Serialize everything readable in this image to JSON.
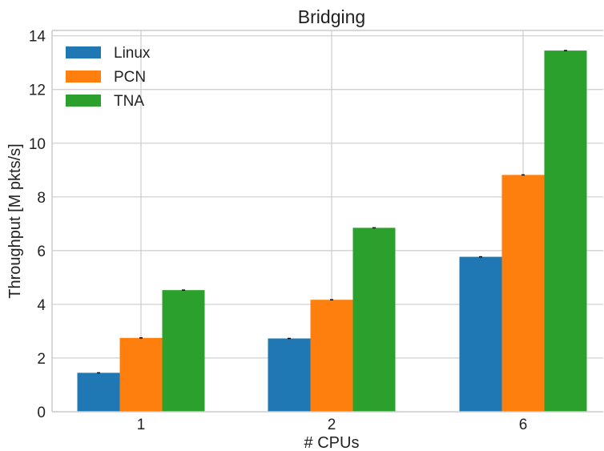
{
  "chart_data": {
    "type": "bar",
    "title": "Bridging",
    "xlabel": "# CPUs",
    "ylabel": "Throughput [M pkts/s]",
    "categories": [
      "1",
      "2",
      "6"
    ],
    "ylim": [
      0,
      14.2
    ],
    "yticks": [
      0,
      2,
      4,
      6,
      8,
      10,
      12,
      14
    ],
    "grid": true,
    "legend_position": "top-left",
    "series": [
      {
        "name": "Linux",
        "color": "#1f77b4",
        "values": [
          1.45,
          2.73,
          5.77
        ]
      },
      {
        "name": "PCN",
        "color": "#ff7f0e",
        "values": [
          2.75,
          4.17,
          8.82
        ]
      },
      {
        "name": "TNA",
        "color": "#2ca02c",
        "values": [
          4.53,
          6.85,
          13.45
        ]
      }
    ]
  }
}
